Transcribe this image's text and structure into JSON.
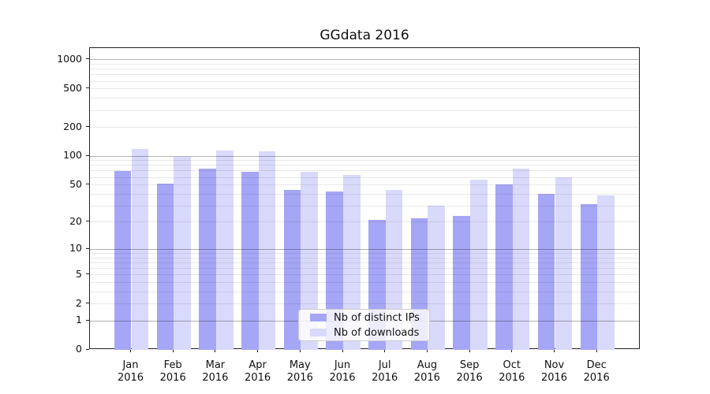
{
  "chart_data": {
    "type": "bar",
    "title": "GGdata 2016",
    "x_axis": {
      "months": [
        "Jan",
        "Feb",
        "Mar",
        "Apr",
        "May",
        "Jun",
        "Jul",
        "Aug",
        "Sep",
        "Oct",
        "Nov",
        "Dec"
      ],
      "year_line": "2016"
    },
    "y_axis": {
      "ticks": [
        0,
        1,
        2,
        5,
        10,
        20,
        50,
        100,
        200,
        500,
        1000
      ],
      "scale": "log(1+y)",
      "range_top": 1310
    },
    "gridlines": {
      "major": [
        1,
        10,
        100,
        1000
      ],
      "minor": [
        2,
        3,
        4,
        5,
        6,
        7,
        8,
        9,
        20,
        30,
        40,
        50,
        60,
        70,
        80,
        90,
        200,
        300,
        400,
        500,
        600,
        700,
        800,
        900
      ]
    },
    "series": [
      {
        "name": "Nb of distinct IPs",
        "color": "#a6a6f6",
        "values": [
          69,
          51,
          74,
          68,
          44,
          42,
          21,
          22,
          23,
          50,
          40,
          31
        ]
      },
      {
        "name": "Nb of downloads",
        "color": "#d9d9fb",
        "values": [
          117,
          98,
          114,
          111,
          68,
          63,
          44,
          30,
          56,
          74,
          60,
          38
        ]
      }
    ],
    "legend": {
      "position": "lower-center"
    }
  }
}
